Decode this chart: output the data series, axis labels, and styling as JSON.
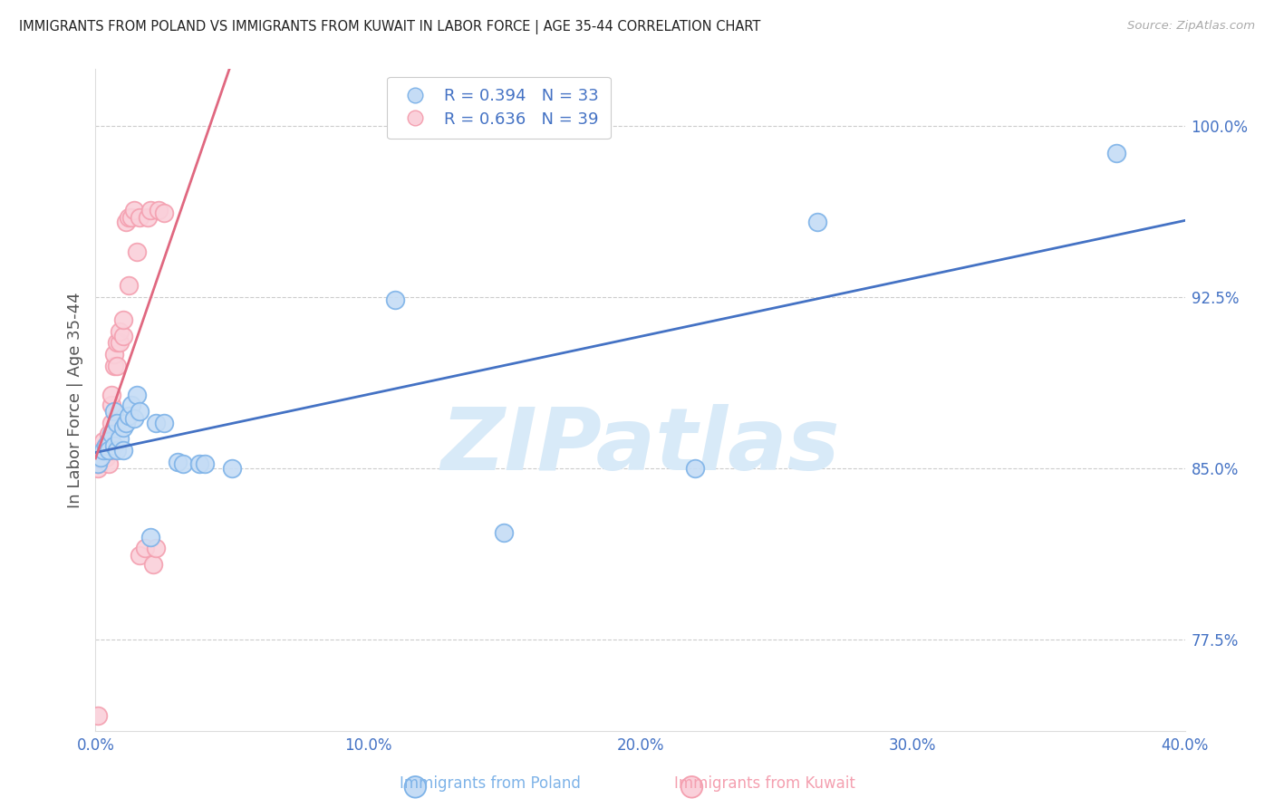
{
  "title": "IMMIGRANTS FROM POLAND VS IMMIGRANTS FROM KUWAIT IN LABOR FORCE | AGE 35-44 CORRELATION CHART",
  "source": "Source: ZipAtlas.com",
  "ylabel": "In Labor Force | Age 35-44",
  "xlim": [
    0.0,
    0.4
  ],
  "ylim": [
    0.735,
    1.025
  ],
  "yticks": [
    0.775,
    0.85,
    0.925,
    1.0
  ],
  "ytick_labels": [
    "77.5%",
    "85.0%",
    "92.5%",
    "100.0%"
  ],
  "xticks": [
    0.0,
    0.1,
    0.2,
    0.3,
    0.4
  ],
  "xtick_labels": [
    "0.0%",
    "10.0%",
    "20.0%",
    "30.0%",
    "40.0%"
  ],
  "poland_scatter_x": [
    0.001,
    0.002,
    0.003,
    0.004,
    0.005,
    0.005,
    0.006,
    0.007,
    0.007,
    0.008,
    0.008,
    0.009,
    0.01,
    0.01,
    0.011,
    0.012,
    0.013,
    0.014,
    0.015,
    0.016,
    0.02,
    0.022,
    0.025,
    0.03,
    0.032,
    0.038,
    0.04,
    0.05,
    0.11,
    0.15,
    0.22,
    0.265,
    0.375
  ],
  "poland_scatter_y": [
    0.852,
    0.855,
    0.858,
    0.86,
    0.862,
    0.858,
    0.865,
    0.86,
    0.875,
    0.858,
    0.87,
    0.863,
    0.858,
    0.868,
    0.87,
    0.873,
    0.878,
    0.872,
    0.882,
    0.875,
    0.82,
    0.87,
    0.87,
    0.853,
    0.852,
    0.852,
    0.852,
    0.85,
    0.924,
    0.822,
    0.85,
    0.958,
    0.988
  ],
  "kuwait_scatter_x": [
    0.001,
    0.001,
    0.001,
    0.002,
    0.002,
    0.003,
    0.003,
    0.004,
    0.004,
    0.005,
    0.005,
    0.005,
    0.006,
    0.006,
    0.006,
    0.006,
    0.007,
    0.007,
    0.008,
    0.008,
    0.009,
    0.009,
    0.01,
    0.01,
    0.011,
    0.012,
    0.012,
    0.013,
    0.014,
    0.015,
    0.016,
    0.016,
    0.018,
    0.019,
    0.02,
    0.021,
    0.022,
    0.023,
    0.025
  ],
  "kuwait_scatter_y": [
    0.85,
    0.852,
    0.742,
    0.854,
    0.858,
    0.856,
    0.862,
    0.855,
    0.86,
    0.852,
    0.858,
    0.865,
    0.858,
    0.87,
    0.878,
    0.882,
    0.895,
    0.9,
    0.895,
    0.905,
    0.905,
    0.91,
    0.908,
    0.915,
    0.958,
    0.96,
    0.93,
    0.96,
    0.963,
    0.945,
    0.96,
    0.812,
    0.815,
    0.96,
    0.963,
    0.808,
    0.815,
    0.963,
    0.962
  ],
  "poland_color": "#7EB3E8",
  "poland_fill": "#C5DCF5",
  "kuwait_color": "#F4A0B0",
  "kuwait_fill": "#FAD0DA",
  "trend_poland_color": "#4472C4",
  "trend_kuwait_color": "#E06880",
  "background_color": "#FFFFFF",
  "grid_color": "#CCCCCC",
  "title_color": "#222222",
  "axis_label_color": "#555555",
  "tick_label_color": "#4472C4",
  "source_color": "#AAAAAA",
  "watermark_color": "#D8EAF8",
  "legend_poland_label": "R = 0.394   N = 33",
  "legend_kuwait_label": "R = 0.636   N = 39",
  "legend_poland_color": "#4472C4",
  "legend_kuwait_color": "#E06880"
}
